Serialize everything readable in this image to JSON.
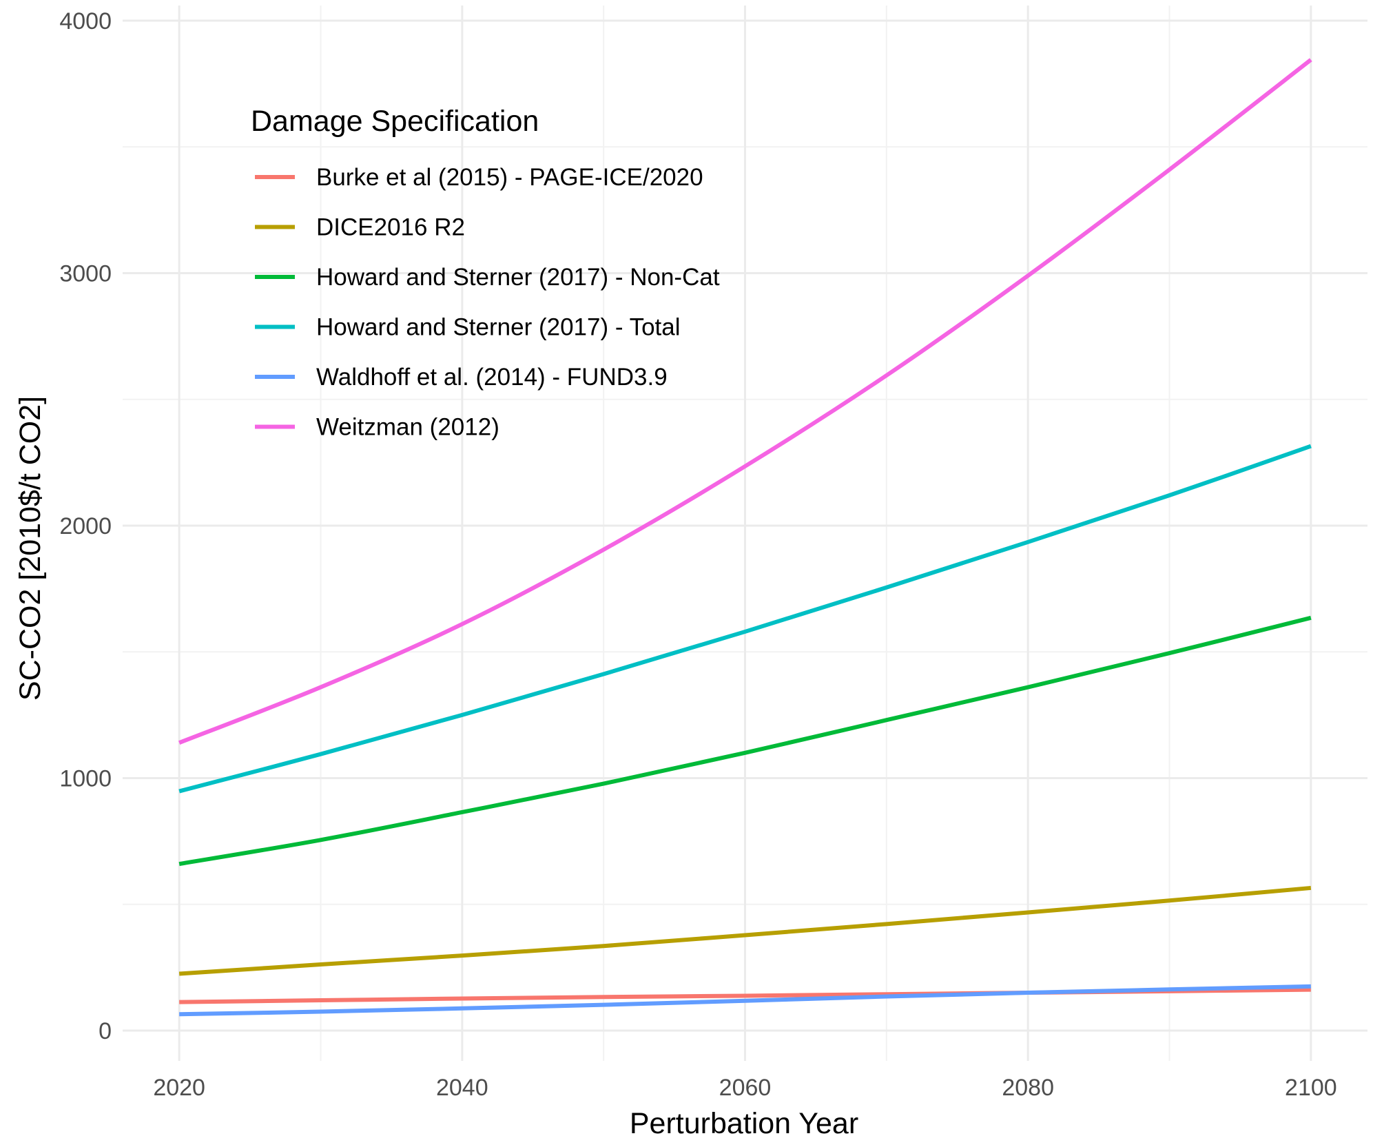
{
  "chart_data": {
    "type": "line",
    "xlabel": "Perturbation Year",
    "ylabel": "SC-CO2 [2010$/t CO2]",
    "xlim": [
      2016,
      2104
    ],
    "ylim": [
      -120,
      4060
    ],
    "x_ticks": [
      2020,
      2040,
      2060,
      2080,
      2100
    ],
    "y_ticks": [
      0,
      1000,
      2000,
      3000,
      4000
    ],
    "grid": true,
    "legend_title": "Damage Specification",
    "legend_position": "top-left inside",
    "x": [
      2020,
      2030,
      2040,
      2050,
      2060,
      2070,
      2080,
      2090,
      2100
    ],
    "series": [
      {
        "name": "Burke et al (2015) - PAGE-ICE/2020",
        "color": "#F8766D",
        "values": [
          113,
          120,
          127,
          133,
          138,
          144,
          150,
          156,
          162
        ]
      },
      {
        "name": "DICE2016 R2",
        "color": "#B79F00",
        "values": [
          225,
          262,
          297,
          335,
          378,
          422,
          468,
          515,
          565
        ]
      },
      {
        "name": "Howard and Sterner (2017) - Non-Cat",
        "color": "#00BA38",
        "values": [
          660,
          755,
          865,
          978,
          1100,
          1230,
          1360,
          1495,
          1635
        ]
      },
      {
        "name": "Howard and Sterner (2017) - Total",
        "color": "#00BFC4",
        "values": [
          948,
          1095,
          1250,
          1412,
          1580,
          1755,
          1935,
          2120,
          2315
        ]
      },
      {
        "name": "Waldhoff et al. (2014) - FUND3.9",
        "color": "#619CFF",
        "values": [
          65,
          75,
          88,
          102,
          118,
          135,
          150,
          163,
          175
        ]
      },
      {
        "name": "Weitzman (2012)",
        "color": "#F564E3",
        "values": [
          1140,
          1360,
          1610,
          1905,
          2235,
          2595,
          2990,
          3410,
          3845
        ]
      }
    ]
  }
}
